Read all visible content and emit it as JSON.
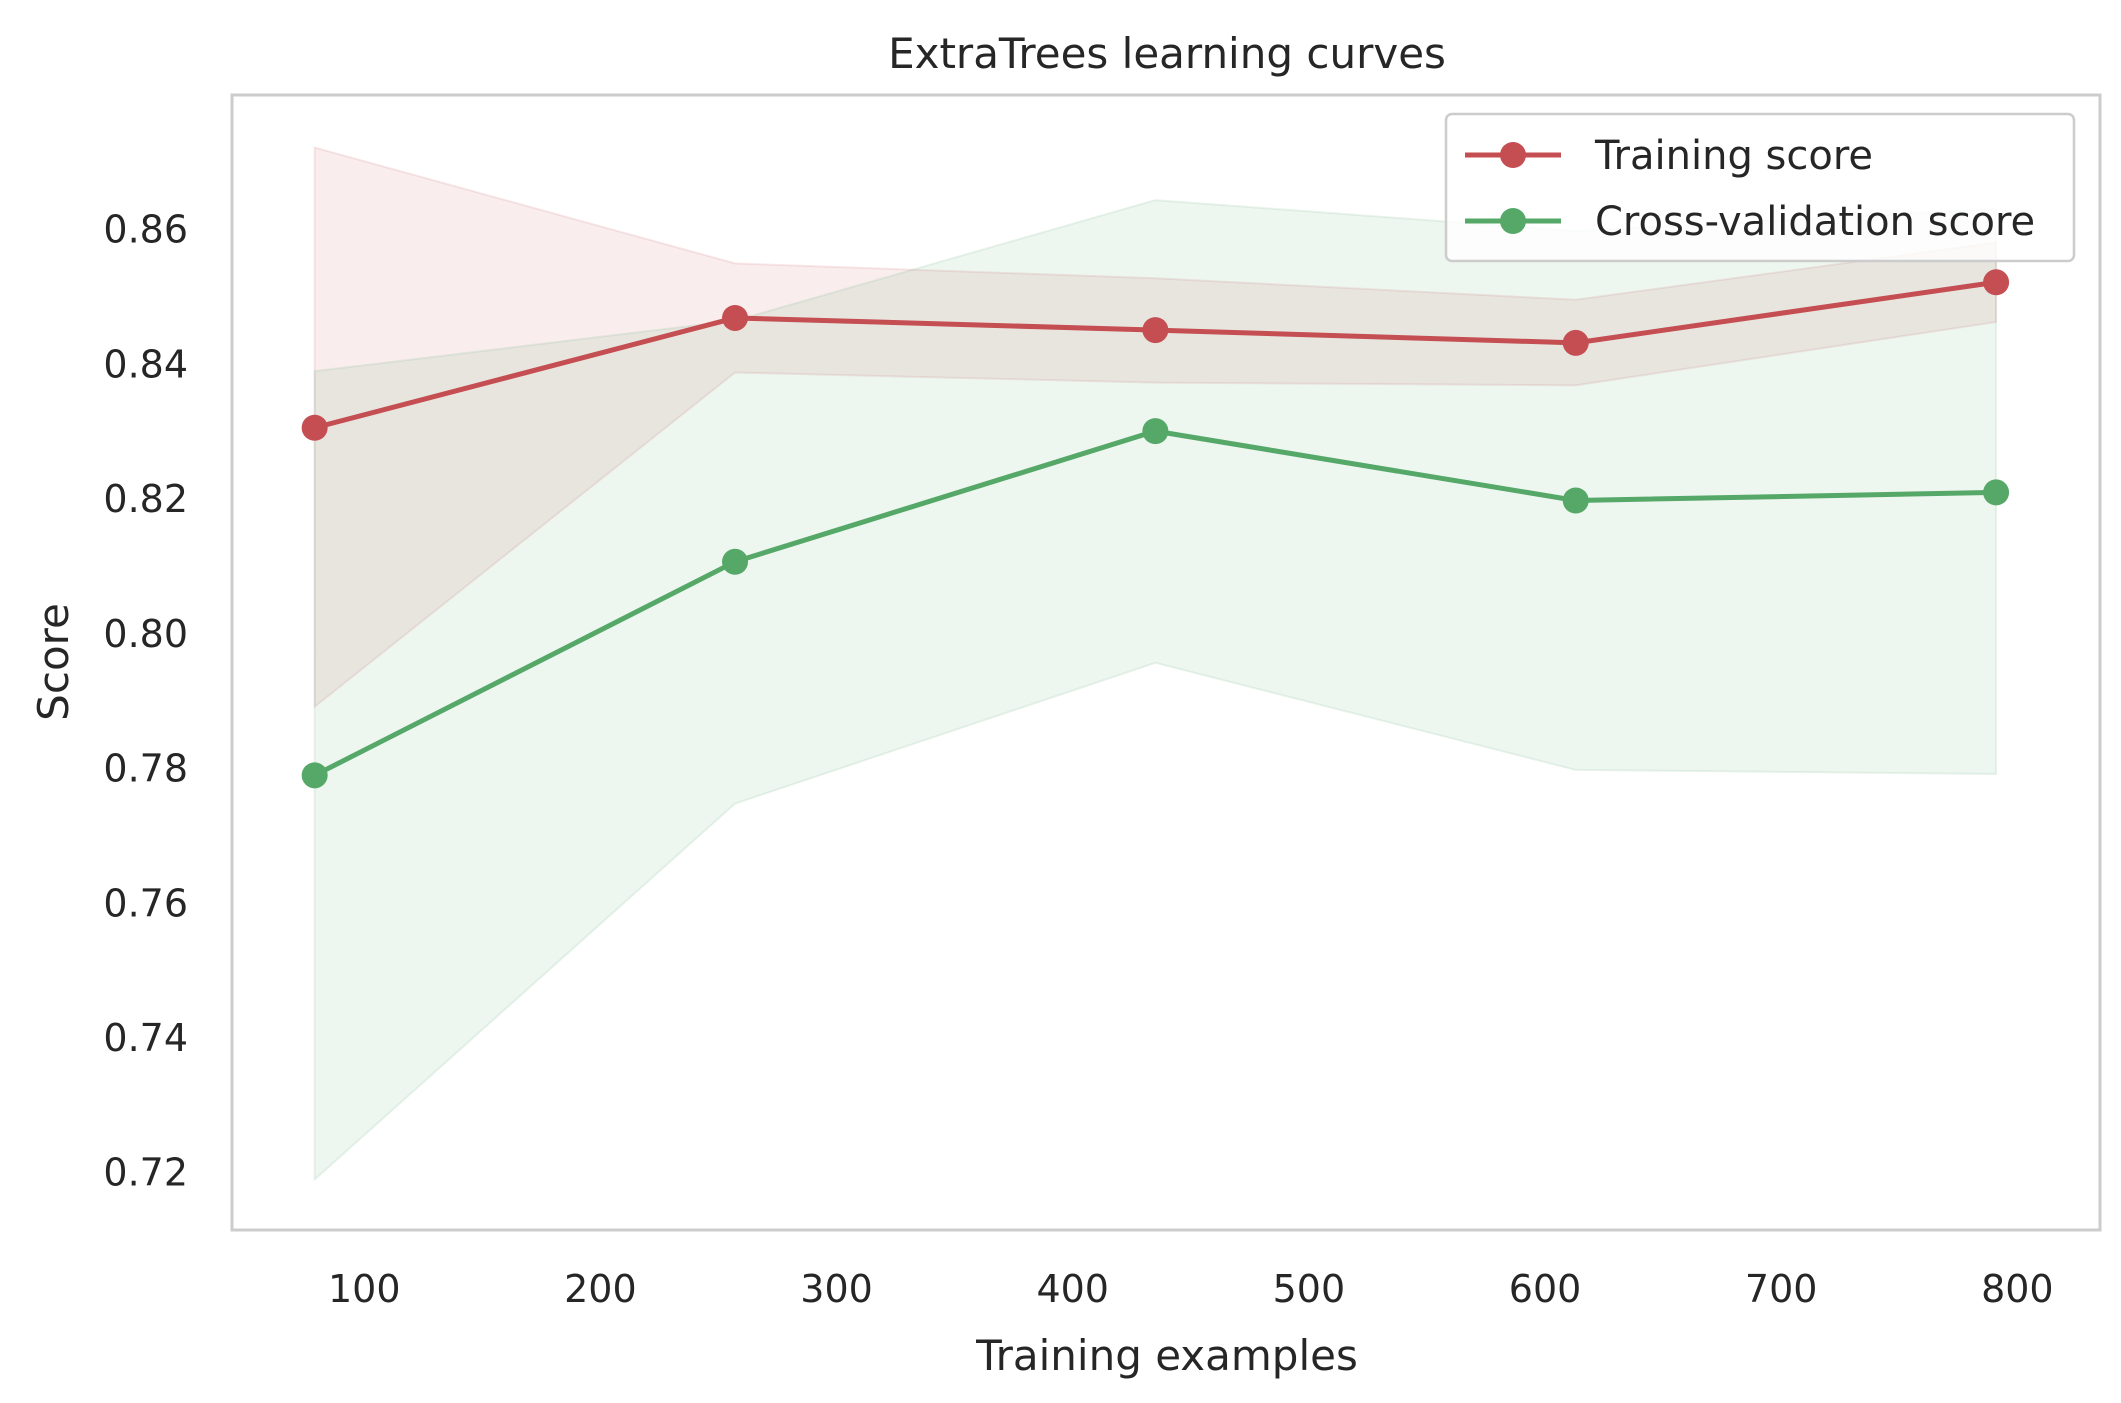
{
  "chart_data": {
    "type": "line",
    "title": "ExtraTrees learning curves",
    "xlabel": "Training examples",
    "ylabel": "Score",
    "xlim": [
      44,
      835
    ],
    "ylim": [
      0.7115,
      0.88
    ],
    "grid": false,
    "legend_position": "top-right",
    "x_ticks": [
      100,
      200,
      300,
      400,
      500,
      600,
      700,
      800
    ],
    "x_tick_labels": [
      "100",
      "200",
      "300",
      "400",
      "500",
      "600",
      "700",
      "800"
    ],
    "y_ticks": [
      0.72,
      0.74,
      0.76,
      0.78,
      0.8,
      0.82,
      0.84,
      0.86
    ],
    "y_tick_labels": [
      "0.72",
      "0.74",
      "0.76",
      "0.78",
      "0.80",
      "0.82",
      "0.84",
      "0.86"
    ],
    "x": [
      79,
      257,
      435,
      613,
      791
    ],
    "series": [
      {
        "name": "Training score",
        "color": "#c44e52",
        "values": [
          0.8306,
          0.8469,
          0.8451,
          0.8432,
          0.8522
        ],
        "band_upper": [
          0.8722,
          0.855,
          0.8528,
          0.8496,
          0.8581
        ],
        "band_lower": [
          0.7892,
          0.8388,
          0.8373,
          0.8369,
          0.8463
        ]
      },
      {
        "name": "Cross-validation score",
        "color": "#55a868",
        "values": [
          0.779,
          0.8107,
          0.8301,
          0.8198,
          0.821
        ],
        "band_upper": [
          0.839,
          0.8465,
          0.8644,
          0.8598,
          0.8631
        ],
        "band_lower": [
          0.719,
          0.7748,
          0.7957,
          0.7798,
          0.7792
        ]
      }
    ]
  }
}
